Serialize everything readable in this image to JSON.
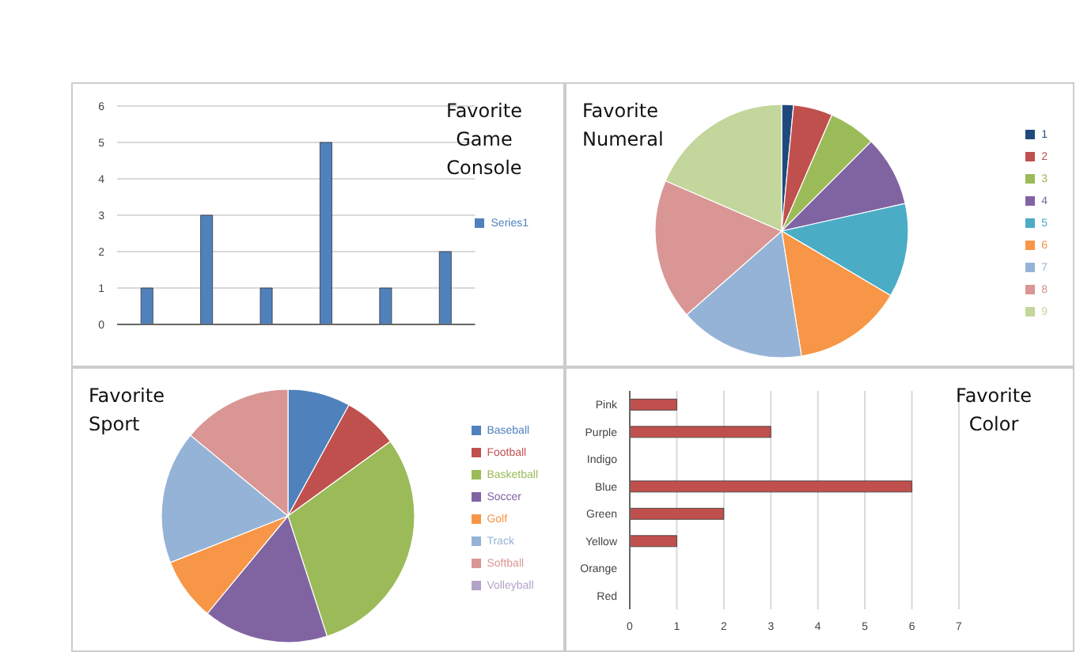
{
  "chart_data": [
    {
      "type": "bar",
      "title": "Favorite Game Console",
      "categories": [
        null,
        null,
        null,
        null,
        null,
        null
      ],
      "series": [
        {
          "name": "Series1",
          "color": "#4f81bd",
          "values": [
            1,
            3,
            1,
            5,
            1,
            2
          ]
        }
      ],
      "ylim": [
        0,
        6
      ],
      "yticks": [
        0,
        1,
        2,
        3,
        4,
        5,
        6
      ],
      "grid": "y",
      "legend": "right"
    },
    {
      "type": "pie",
      "title": "Favorite Numeral",
      "categories": [
        "1",
        "2",
        "3",
        "4",
        "5",
        "6",
        "7",
        "8",
        "9"
      ],
      "values": [
        1.5,
        5,
        6,
        9,
        12,
        14,
        16,
        18,
        18.5
      ],
      "colors": [
        "#1f497d",
        "#c0504d",
        "#9bbb59",
        "#8064a2",
        "#4bacc6",
        "#f79646",
        "#95b3d7",
        "#d99694",
        "#c3d69b"
      ],
      "legend": "right"
    },
    {
      "type": "pie",
      "title": "Favorite Sport",
      "categories": [
        "Baseball",
        "Football",
        "Basketball",
        "Soccer",
        "Golf",
        "Track",
        "Softball",
        "Volleyball"
      ],
      "values": [
        8,
        7,
        30,
        16,
        8,
        17,
        14,
        0
      ],
      "colors": [
        "#4f81bd",
        "#c0504d",
        "#9bbb59",
        "#8064a2",
        "#f79646",
        "#95b3d7",
        "#d99694",
        "#b3a2c7"
      ],
      "legend": "right"
    },
    {
      "type": "bar",
      "orientation": "horizontal",
      "title": "Favorite Color",
      "categories": [
        "Pink",
        "Purple",
        "Indigo",
        "Blue",
        "Green",
        "Yellow",
        "Orange",
        "Red"
      ],
      "series": [
        {
          "color": "#c0504d",
          "values": [
            1,
            3,
            0,
            6,
            2,
            1,
            0,
            0
          ]
        }
      ],
      "xlim": [
        0,
        7
      ],
      "xticks": [
        0,
        1,
        2,
        3,
        4,
        5,
        6,
        7
      ],
      "grid": "x",
      "legend": false
    }
  ]
}
